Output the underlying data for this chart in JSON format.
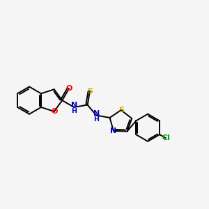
{
  "background_color": "#f5f5f5",
  "bond_color": "#000000",
  "atom_colors": {
    "O": "#ff0000",
    "N": "#0000cc",
    "S": "#ccaa00",
    "Cl": "#00aa00",
    "C": "#000000"
  },
  "figsize": [
    3.0,
    3.0
  ],
  "dpi": 100,
  "lw": 1.4,
  "fontsize": 8.0
}
